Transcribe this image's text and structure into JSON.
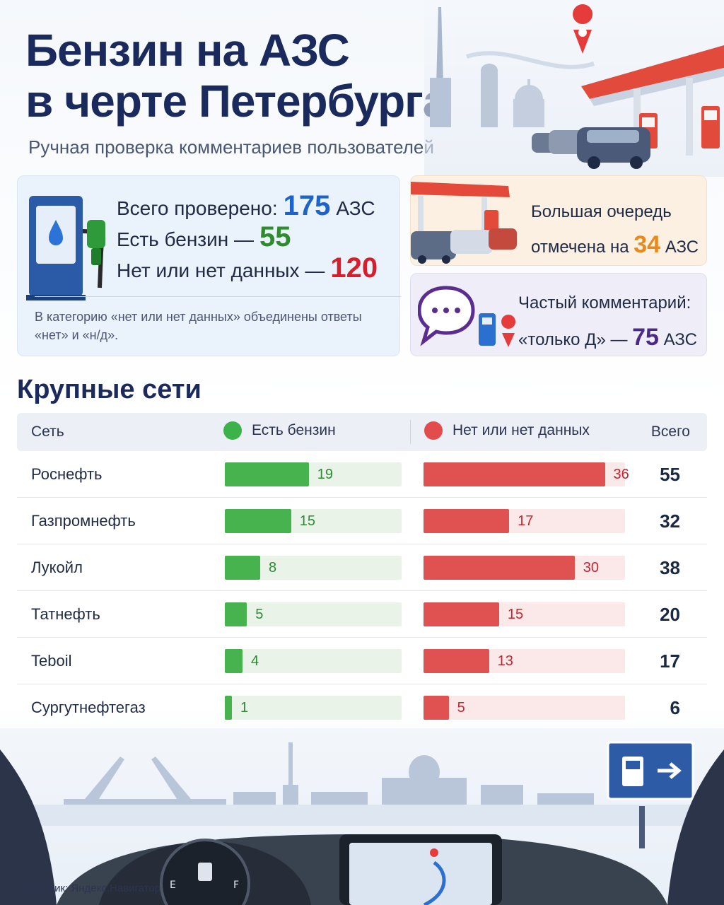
{
  "header": {
    "title_line1": "Бензин на АЗС",
    "title_line2": "в черте Петербурга",
    "subtitle": "Ручная проверка комментариев пользователей"
  },
  "summary": {
    "total_label": "Всего проверено:",
    "total_value": "175",
    "total_unit": "АЗС",
    "has_label": "Есть бензин —",
    "has_value": "55",
    "none_label": "Нет или нет данных —",
    "none_value": "120",
    "note": "В категорию «нет или нет данных» объединены ответы «нет» и «н/д»."
  },
  "queue": {
    "line1": "Большая очередь",
    "line2_prefix": "отмечена на",
    "value": "34",
    "unit": "АЗС"
  },
  "comment": {
    "line1": "Частый комментарий:",
    "line2_prefix": "«только Д» —",
    "value": "75",
    "unit": "АЗС"
  },
  "section_title": "Крупные сети",
  "colors": {
    "green": "#47b34f",
    "red": "#e05252",
    "accent_blue": "#1e63c7",
    "accent_orange": "#e8891b",
    "accent_purple": "#4b2b86"
  },
  "chart_data": {
    "type": "bar",
    "columns": [
      "Сеть",
      "Есть бензин",
      "Нет или нет данных",
      "Всего"
    ],
    "categories": [
      "Роснефть",
      "Газпромнефть",
      "Лукойл",
      "Татнефть",
      "Teboil",
      "Сургутнефтегаз"
    ],
    "series": [
      {
        "name": "Есть бензин",
        "values": [
          19,
          15,
          8,
          5,
          4,
          1
        ]
      },
      {
        "name": "Нет или нет данных",
        "values": [
          36,
          17,
          30,
          15,
          13,
          5
        ]
      }
    ],
    "totals": [
      55,
      32,
      38,
      20,
      17,
      6
    ],
    "scale_max_yes": 40,
    "scale_max_no": 40
  },
  "source": "Источник: Яндекс.Навигатор"
}
